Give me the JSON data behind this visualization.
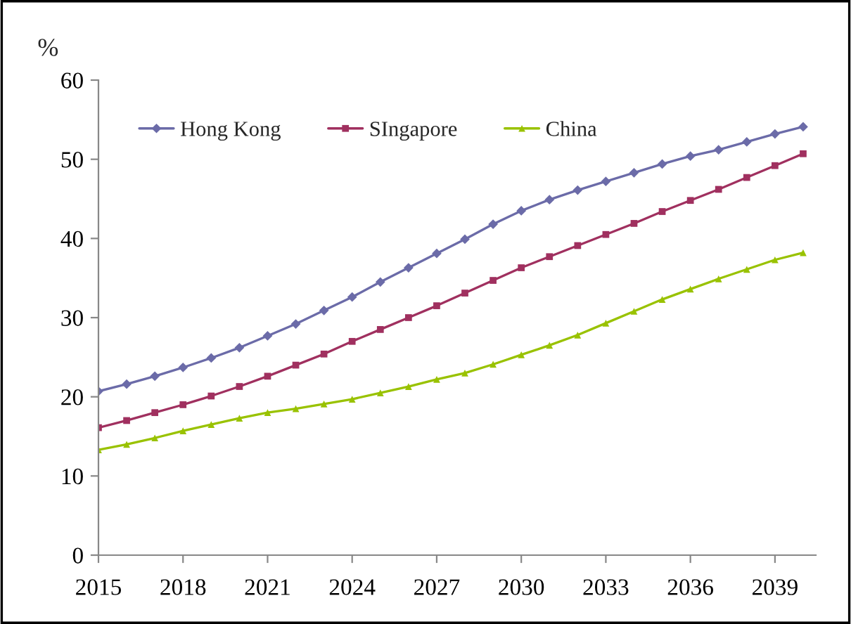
{
  "chart_data": {
    "type": "line",
    "ylabel": "%",
    "x": [
      2015,
      2016,
      2017,
      2018,
      2019,
      2020,
      2021,
      2022,
      2023,
      2024,
      2025,
      2026,
      2027,
      2028,
      2029,
      2030,
      2031,
      2032,
      2033,
      2034,
      2035,
      2036,
      2037,
      2038,
      2039,
      2040
    ],
    "series": [
      {
        "name": "Hong Kong",
        "color": "#6b6ba8",
        "marker": "diamond",
        "values": [
          20.7,
          21.6,
          22.6,
          23.7,
          24.9,
          26.2,
          27.7,
          29.2,
          30.9,
          32.6,
          34.5,
          36.3,
          38.1,
          39.9,
          41.8,
          43.5,
          44.9,
          46.1,
          47.2,
          48.3,
          49.4,
          50.4,
          51.2,
          52.2,
          53.2,
          54.1
        ]
      },
      {
        "name": "SIngapore",
        "color": "#a0305f",
        "marker": "square",
        "values": [
          16.1,
          17.0,
          18.0,
          19.0,
          20.1,
          21.3,
          22.6,
          24.0,
          25.4,
          27.0,
          28.5,
          30.0,
          31.5,
          33.1,
          34.7,
          36.3,
          37.7,
          39.1,
          40.5,
          41.9,
          43.4,
          44.8,
          46.2,
          47.7,
          49.2,
          50.7
        ]
      },
      {
        "name": "China",
        "color": "#99c200",
        "marker": "triangle",
        "values": [
          13.3,
          14.0,
          14.8,
          15.7,
          16.5,
          17.3,
          18.0,
          18.5,
          19.1,
          19.7,
          20.5,
          21.3,
          22.2,
          23.0,
          24.1,
          25.3,
          26.5,
          27.8,
          29.3,
          30.8,
          32.3,
          33.6,
          34.9,
          36.1,
          37.3,
          38.2
        ]
      }
    ],
    "xlim": [
      2015,
      2040.45
    ],
    "xticks": [
      2015,
      2018,
      2021,
      2024,
      2027,
      2030,
      2033,
      2036,
      2039
    ],
    "ylim": [
      0,
      60
    ],
    "yticks": [
      0,
      10,
      20,
      30,
      40,
      50,
      60
    ],
    "grid": false,
    "legend": "top left",
    "line_style": "solid"
  }
}
